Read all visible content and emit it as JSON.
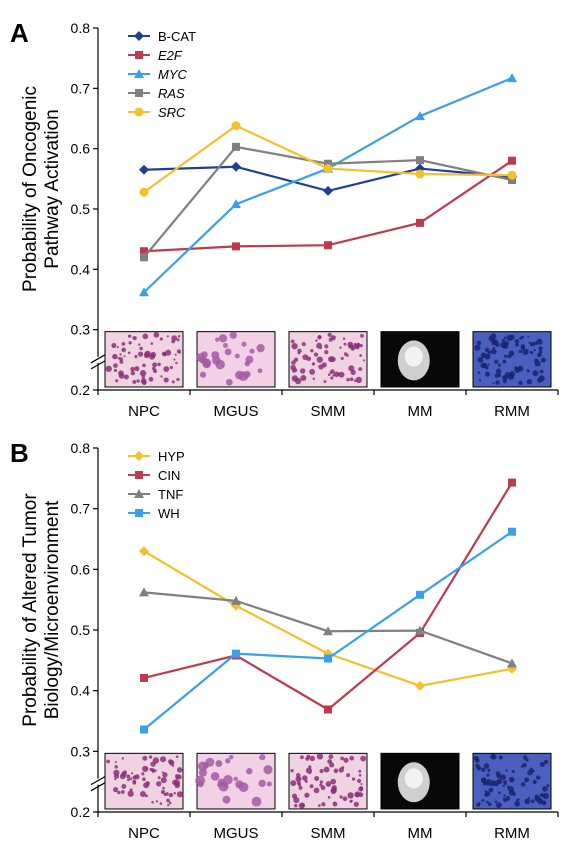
{
  "chart_data": [
    {
      "type": "line",
      "panel_letter": "A",
      "ylabel_lines": [
        "Probability of Oncogenic",
        "Pathway Activation"
      ],
      "categories": [
        "NPC",
        "MGUS",
        "SMM",
        "MM",
        "RMM"
      ],
      "ylim": [
        0.2,
        0.8
      ],
      "yticks": [
        "0.2",
        "0.3",
        "0.4",
        "0.5",
        "0.6",
        "0.7",
        "0.8"
      ],
      "axis_break": true,
      "grid": false,
      "legend_position": "top-left",
      "thumbnails": [
        "purple-stained cells",
        "pink cells with purple cluster",
        "purple-stained cells",
        "grayscale image",
        "dark blue stained cells"
      ],
      "series": [
        {
          "name": "B-CAT",
          "italic": false,
          "color": "#1f3f97",
          "marker": "diamond",
          "values": [
            0.565,
            0.57,
            0.53,
            0.567,
            0.553
          ]
        },
        {
          "name": "E2F",
          "italic": true,
          "color": "#c0394e",
          "marker": "square",
          "values": [
            0.43,
            0.438,
            0.44,
            0.477,
            0.58
          ]
        },
        {
          "name": "MYC",
          "italic": true,
          "color": "#3aa0e8",
          "marker": "triangle",
          "values": [
            0.362,
            0.508,
            0.567,
            0.654,
            0.717
          ]
        },
        {
          "name": "RAS",
          "italic": true,
          "color": "#808080",
          "marker": "square",
          "values": [
            0.42,
            0.603,
            0.575,
            0.581,
            0.548
          ]
        },
        {
          "name": "SRC",
          "italic": true,
          "color": "#f2c12e",
          "marker": "circle",
          "values": [
            0.528,
            0.638,
            0.567,
            0.558,
            0.556
          ]
        }
      ]
    },
    {
      "type": "line",
      "panel_letter": "B",
      "ylabel_lines": [
        "Probability of Altered Tumor",
        "Biology/Microenvironment"
      ],
      "categories": [
        "NPC",
        "MGUS",
        "SMM",
        "MM",
        "RMM"
      ],
      "ylim": [
        0.2,
        0.8
      ],
      "yticks": [
        "0.2",
        "0.3",
        "0.4",
        "0.5",
        "0.6",
        "0.7",
        "0.8"
      ],
      "axis_break": true,
      "grid": false,
      "legend_position": "top-left",
      "thumbnails": [
        "purple-stained cells",
        "pink cells with purple cluster",
        "purple-stained cells",
        "grayscale image",
        "dark blue stained cells"
      ],
      "series": [
        {
          "name": "HYP",
          "italic": false,
          "color": "#f2c12e",
          "marker": "diamond",
          "values": [
            0.63,
            0.54,
            0.461,
            0.408,
            0.436
          ]
        },
        {
          "name": "CIN",
          "italic": false,
          "color": "#c0394e",
          "marker": "square",
          "values": [
            0.421,
            0.458,
            0.369,
            0.495,
            0.743
          ]
        },
        {
          "name": "TNF",
          "italic": false,
          "color": "#808080",
          "marker": "triangle",
          "values": [
            0.562,
            0.548,
            0.498,
            0.499,
            0.445
          ]
        },
        {
          "name": "WH",
          "italic": false,
          "color": "#3aa0e8",
          "marker": "square",
          "values": [
            0.336,
            0.461,
            0.453,
            0.558,
            0.662
          ]
        }
      ]
    }
  ]
}
